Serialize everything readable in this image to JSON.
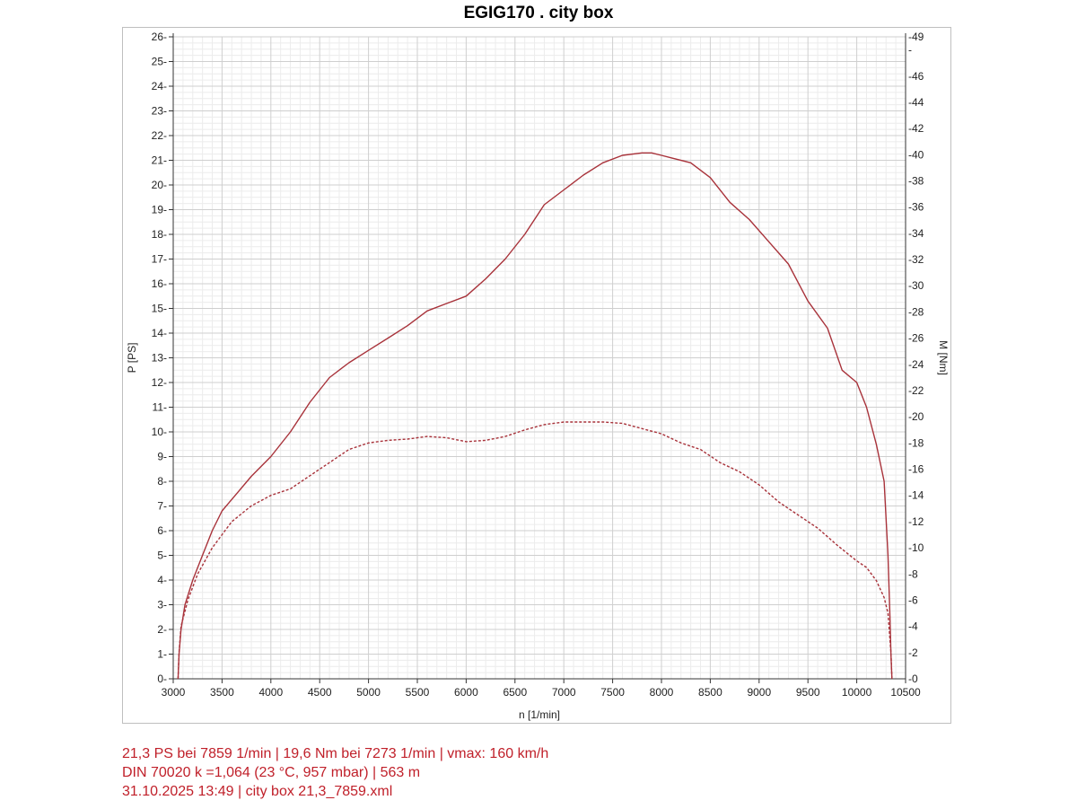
{
  "chart_data": {
    "type": "line",
    "title": "EGIG170 . city box",
    "xlabel": "n [1/min]",
    "ylabel": "P [PS]",
    "y2label": "M [Nm]",
    "xlim": [
      3000,
      10500
    ],
    "ylim": [
      0,
      26
    ],
    "y2lim": [
      0,
      49
    ],
    "x_ticks": [
      3000,
      3500,
      4000,
      4500,
      5000,
      5500,
      6000,
      6500,
      7000,
      7500,
      8000,
      8500,
      9000,
      9500,
      10000,
      10500
    ],
    "y_ticks": [
      0,
      1,
      2,
      3,
      4,
      5,
      6,
      7,
      8,
      9,
      10,
      11,
      12,
      13,
      14,
      15,
      16,
      17,
      18,
      19,
      20,
      21,
      22,
      23,
      24,
      25,
      26
    ],
    "y2_tick_labels": [
      "-0",
      "-2",
      "-4",
      "-6",
      "-8",
      "-10",
      "-12",
      "-14",
      "-16",
      "-18",
      "-20",
      "-22",
      "-24",
      "-26",
      "-28",
      "-30",
      "-32",
      "-34",
      "-36",
      "-38",
      "-40",
      "-42",
      "-44",
      "-46",
      "-",
      "-49"
    ],
    "y2_tick_values": [
      0,
      2,
      4,
      6,
      8,
      10,
      12,
      14,
      16,
      18,
      20,
      22,
      24,
      26,
      28,
      30,
      32,
      34,
      36,
      38,
      40,
      42,
      44,
      46,
      48,
      49
    ],
    "grid": true,
    "series": [
      {
        "axis": "left",
        "style": "solid",
        "color": "#a8323a",
        "x": [
          3050,
          3060,
          3080,
          3120,
          3200,
          3300,
          3400,
          3500,
          3650,
          3800,
          4000,
          4200,
          4400,
          4600,
          4800,
          5000,
          5200,
          5400,
          5600,
          5800,
          6000,
          6200,
          6400,
          6600,
          6800,
          7000,
          7200,
          7400,
          7600,
          7800,
          7900,
          8000,
          8100,
          8300,
          8500,
          8700,
          8900,
          9100,
          9300,
          9500,
          9700,
          9850,
          10000,
          10100,
          10200,
          10280,
          10320,
          10340,
          10350,
          10360
        ],
        "values": [
          0,
          1,
          2,
          3,
          4,
          5,
          6,
          6.8,
          7.5,
          8.2,
          9,
          10,
          11.2,
          12.2,
          12.8,
          13.3,
          13.8,
          14.3,
          14.9,
          15.2,
          15.5,
          16.2,
          17,
          18,
          19.2,
          19.8,
          20.4,
          20.9,
          21.2,
          21.3,
          21.3,
          21.2,
          21.1,
          20.9,
          20.3,
          19.3,
          18.6,
          17.7,
          16.8,
          15.3,
          14.2,
          12.5,
          12,
          11,
          9.5,
          8,
          5,
          2.5,
          1,
          0
        ]
      },
      {
        "axis": "right",
        "style": "dashed",
        "color": "#a8323a",
        "x": [
          3050,
          3060,
          3080,
          3150,
          3250,
          3400,
          3600,
          3800,
          4000,
          4200,
          4400,
          4600,
          4800,
          5000,
          5200,
          5400,
          5600,
          5800,
          6000,
          6200,
          6400,
          6600,
          6800,
          7000,
          7200,
          7400,
          7600,
          7800,
          8000,
          8200,
          8400,
          8600,
          8800,
          9000,
          9200,
          9400,
          9600,
          9800,
          10000,
          10100,
          10200,
          10280,
          10320,
          10340,
          10350,
          10360
        ],
        "values": [
          0,
          2,
          4,
          6,
          8,
          10,
          12,
          13.2,
          14,
          14.5,
          15.5,
          16.5,
          17.5,
          18,
          18.2,
          18.3,
          18.5,
          18.4,
          18.1,
          18.2,
          18.5,
          19,
          19.4,
          19.6,
          19.6,
          19.6,
          19.5,
          19.1,
          18.7,
          18,
          17.5,
          16.5,
          15.8,
          14.8,
          13.5,
          12.5,
          11.5,
          10.2,
          9,
          8.5,
          7.5,
          6.2,
          5,
          3,
          2,
          0
        ]
      }
    ]
  },
  "footer": {
    "line1": "21,3 PS bei 7859 1/min | 19,6 Nm bei 7273 1/min | vmax: 160 km/h",
    "line2": "DIN 70020 k =1,064 (23 °C, 957 mbar) | 563 m",
    "line3": "31.10.2025 13:49 | city box 21,3_7859.xml"
  }
}
